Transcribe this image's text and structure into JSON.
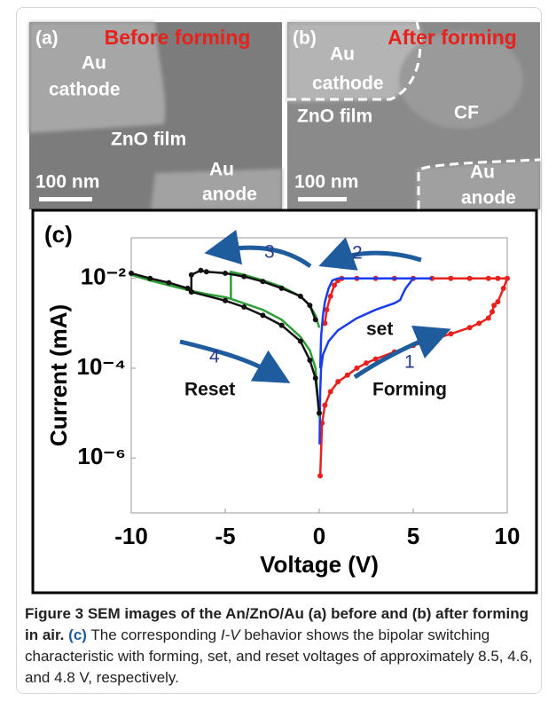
{
  "panels": [
    {
      "label": "(a)",
      "title": "Before forming",
      "texts": [
        "Au",
        "cathode",
        "ZnO film",
        "Au",
        "anode",
        "100 nm"
      ]
    },
    {
      "label": "(b)",
      "title": "After forming",
      "texts": [
        "Au",
        "cathode",
        "ZnO film",
        "CF",
        "Au",
        "anode",
        "100 nm"
      ]
    }
  ],
  "chart_data": {
    "type": "line",
    "panel_label": "(c)",
    "x_label": "Voltage (V)",
    "y_label": "Current (mA)",
    "xlim": [
      -10,
      10
    ],
    "xticks": [
      -10,
      -5,
      0,
      5,
      10
    ],
    "ylim": [
      6e-08,
      0.08
    ],
    "log_y": true,
    "yticks": [
      {
        "value": 0.01,
        "label": "10⁻²"
      },
      {
        "value": 0.0001,
        "label": "10⁻⁴"
      },
      {
        "value": 1e-06,
        "label": "10⁻⁶"
      }
    ],
    "annotations": [
      "1",
      "2",
      "3",
      "4",
      "set",
      "Reset",
      "Forming"
    ],
    "series": [
      {
        "color": "#e8211c",
        "marker": "circle",
        "x": [
          0.05,
          0.15,
          0.3,
          0.6,
          1,
          1.5,
          2,
          2.5,
          3,
          4,
          5,
          6,
          7,
          8,
          8.5,
          9,
          9.2,
          9.3,
          9.5,
          9.8,
          10,
          9.5,
          9,
          8,
          7,
          6,
          5,
          4,
          3,
          2,
          1.2,
          1,
          0.8,
          0.6,
          0.4,
          0.3
        ],
        "values": [
          4e-07,
          6e-06,
          1.5e-05,
          3e-05,
          5e-05,
          7e-05,
          0.0001,
          0.00013,
          0.00016,
          0.00023,
          0.00032,
          0.00043,
          0.00058,
          0.0008,
          0.001,
          0.0013,
          0.0018,
          0.0025,
          0.003,
          0.006,
          0.01,
          0.01,
          0.01,
          0.01,
          0.01,
          0.01,
          0.01,
          0.01,
          0.01,
          0.01,
          0.01,
          0.009,
          0.007,
          0.004,
          0.002,
          0.001
        ]
      },
      {
        "color": "#1a3cf0",
        "marker": "none",
        "x": [
          0.02,
          0.05,
          0.1,
          0.2,
          0.5,
          1,
          2,
          3,
          4,
          4.3,
          4.5,
          4.6,
          5,
          6,
          5,
          4,
          3,
          2,
          1,
          0.7,
          0.5,
          0.3,
          0.2,
          0.1,
          0.05
        ],
        "values": [
          2e-06,
          3e-05,
          0.0001,
          0.0002,
          0.0004,
          0.0007,
          0.0013,
          0.002,
          0.0028,
          0.0033,
          0.005,
          0.006,
          0.01,
          0.01,
          0.01,
          0.01,
          0.01,
          0.01,
          0.01,
          0.009,
          0.006,
          0.003,
          0.0015,
          0.0005,
          0.0001
        ]
      },
      {
        "color": "#2e9e36",
        "marker": "none",
        "x": [
          -10,
          -9,
          -8,
          -7,
          -6,
          -5,
          -4.7,
          -4.7,
          -4,
          -3,
          -2,
          -1,
          -0.5,
          -0.2,
          0,
          null,
          -4.7,
          -3,
          -2,
          -1,
          -0.5,
          -0.2,
          0
        ],
        "values": [
          0.012,
          0.009,
          0.007,
          0.0055,
          0.0045,
          0.0038,
          0.0035,
          0.014,
          0.012,
          0.009,
          0.0065,
          0.004,
          0.0025,
          0.0015,
          0.0008,
          null,
          0.0035,
          0.002,
          0.0012,
          0.0005,
          0.00025,
          0.0001,
          8e-06
        ]
      },
      {
        "color": "#111111",
        "marker": "circle",
        "x": [
          -10,
          -9,
          -8,
          -7,
          -6.8,
          -6.8,
          -6.3,
          -6,
          -5,
          -4,
          -3,
          -2,
          -1,
          -0.5,
          -0.2,
          null,
          -6.8,
          -5,
          -4,
          -3,
          -2,
          -1,
          -0.5,
          -0.2,
          0
        ],
        "values": [
          0.013,
          0.01,
          0.008,
          0.006,
          0.005,
          0.012,
          0.015,
          0.014,
          0.013,
          0.011,
          0.0085,
          0.006,
          0.004,
          0.0025,
          0.0012,
          null,
          0.005,
          0.0032,
          0.0023,
          0.0015,
          0.0009,
          0.0004,
          0.00015,
          6e-05,
          1e-05
        ]
      }
    ]
  },
  "caption": {
    "lead": "Figure 3 SEM images of the An/ZnO/Au (a) before and (b) after forming in air.",
    "ref": "(c)",
    "body_1": "The corresponding",
    "italic": "I-V",
    "body_2": "behavior shows the bipolar switching characteristic with forming, set, and reset voltages of approximately 8.5, 4.6, and 4.8 V, respectively."
  }
}
